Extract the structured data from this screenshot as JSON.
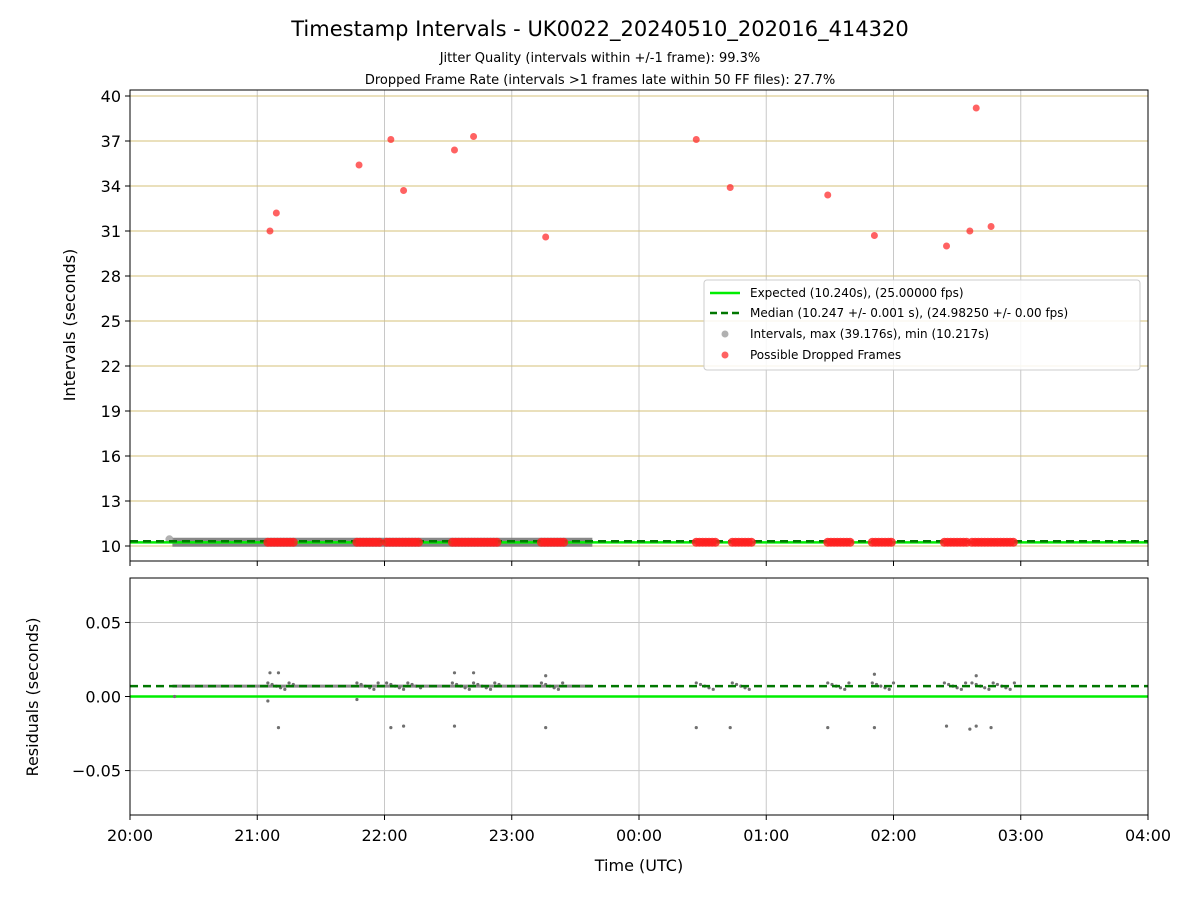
{
  "chart_data": [
    {
      "type": "scatter",
      "title": "Timestamp Intervals - UK0022_20240510_202016_414320",
      "subtitle_lines": [
        "Jitter Quality (intervals within +/-1 frame): 99.3%",
        "Dropped Frame Rate (intervals >1 frames late within 50 FF files): 27.7%"
      ],
      "ylabel": "Intervals (seconds)",
      "ylim": [
        9.0,
        40.4
      ],
      "yticks": [
        10,
        13,
        16,
        19,
        22,
        25,
        28,
        31,
        34,
        37,
        40
      ],
      "grid": true,
      "legend_position": "center-right",
      "series": [
        {
          "name": "Expected (10.240s), (25.00000 fps)",
          "kind": "hline",
          "value": 10.24,
          "color": "#00ee00"
        },
        {
          "name": "Median (10.247 +/- 0.001 s), (24.98250 +/- 0.00 fps)",
          "kind": "hline-dashed",
          "value": 10.247,
          "color": "#007700"
        },
        {
          "name": "Intervals, max (39.176s), min (10.217s)",
          "kind": "scatter",
          "color": "#9e9e9e",
          "value": 10.247,
          "x_range": [
            "20:20",
            "23:38"
          ]
        },
        {
          "name": "Possible Dropped Frames",
          "kind": "scatter",
          "color": "#ff2020",
          "points": [
            {
              "x": "21:06",
              "y": 31.0
            },
            {
              "x": "21:09",
              "y": 32.2
            },
            {
              "x": "21:48",
              "y": 35.4
            },
            {
              "x": "22:03",
              "y": 37.1
            },
            {
              "x": "22:09",
              "y": 33.7
            },
            {
              "x": "22:33",
              "y": 36.4
            },
            {
              "x": "22:42",
              "y": 37.3
            },
            {
              "x": "23:16",
              "y": 30.6
            },
            {
              "x": "00:27",
              "y": 37.1
            },
            {
              "x": "00:43",
              "y": 33.9
            },
            {
              "x": "01:29",
              "y": 33.4
            },
            {
              "x": "01:51",
              "y": 30.7
            },
            {
              "x": "02:25",
              "y": 30.0
            },
            {
              "x": "02:36",
              "y": 31.0
            },
            {
              "x": "02:39",
              "y": 39.2
            },
            {
              "x": "02:46",
              "y": 31.3
            }
          ]
        }
      ],
      "dropped_segments_at_baseline": [
        [
          "21:05",
          "21:18"
        ],
        [
          "21:47",
          "21:58"
        ],
        [
          "22:01",
          "22:17"
        ],
        [
          "22:32",
          "22:54"
        ],
        [
          "23:14",
          "23:25"
        ],
        [
          "00:27",
          "00:36"
        ],
        [
          "00:44",
          "00:53"
        ],
        [
          "01:29",
          "01:40"
        ],
        [
          "01:50",
          "02:00"
        ],
        [
          "02:24",
          "02:35"
        ],
        [
          "02:37",
          "02:57"
        ]
      ]
    },
    {
      "type": "scatter",
      "xlabel": "Time (UTC)",
      "ylabel": "Residuals (seconds)",
      "ylim": [
        -0.08,
        0.08
      ],
      "yticks": [
        0.05,
        0.0,
        -0.05
      ],
      "ytick_labels": [
        "0.05",
        "0.00",
        "−0.05"
      ],
      "xticks": [
        "20:00",
        "21:00",
        "22:00",
        "23:00",
        "00:00",
        "01:00",
        "02:00",
        "03:00",
        "04:00"
      ],
      "xlim": [
        "20:00",
        "04:00"
      ],
      "grid": true,
      "series": [
        {
          "name": "Expected",
          "kind": "hline",
          "value": 0.0,
          "color": "#00ee00"
        },
        {
          "name": "Median",
          "kind": "hline-dashed",
          "value": 0.007,
          "color": "#007700"
        },
        {
          "name": "Residuals",
          "kind": "scatter",
          "color": "#707070",
          "baseline": 0.007,
          "outliers": [
            {
              "x": "21:10",
              "y": -0.021
            },
            {
              "x": "22:03",
              "y": -0.021
            },
            {
              "x": "22:09",
              "y": -0.02
            },
            {
              "x": "22:33",
              "y": -0.02
            },
            {
              "x": "23:16",
              "y": -0.021
            },
            {
              "x": "00:27",
              "y": -0.021
            },
            {
              "x": "00:43",
              "y": -0.021
            },
            {
              "x": "01:29",
              "y": -0.021
            },
            {
              "x": "01:51",
              "y": -0.021
            },
            {
              "x": "02:25",
              "y": -0.02
            },
            {
              "x": "02:36",
              "y": -0.022
            },
            {
              "x": "02:39",
              "y": -0.02
            },
            {
              "x": "02:46",
              "y": -0.021
            },
            {
              "x": "21:06",
              "y": 0.016
            },
            {
              "x": "21:10",
              "y": 0.016
            },
            {
              "x": "22:33",
              "y": 0.016
            },
            {
              "x": "22:42",
              "y": 0.016
            },
            {
              "x": "01:51",
              "y": 0.015
            },
            {
              "x": "23:16",
              "y": 0.014
            },
            {
              "x": "02:39",
              "y": 0.014
            },
            {
              "x": "21:05",
              "y": -0.003
            },
            {
              "x": "21:47",
              "y": -0.002
            },
            {
              "x": "20:21",
              "y": 0.0
            }
          ]
        }
      ]
    }
  ],
  "colors": {
    "expected": "#00ee00",
    "median": "#007700",
    "intervals": "#9e9e9e",
    "dropped": "#ff2020",
    "residuals": "#707070",
    "top_hgrid": "#d4c07a",
    "vgrid": "#c8c8c8"
  }
}
